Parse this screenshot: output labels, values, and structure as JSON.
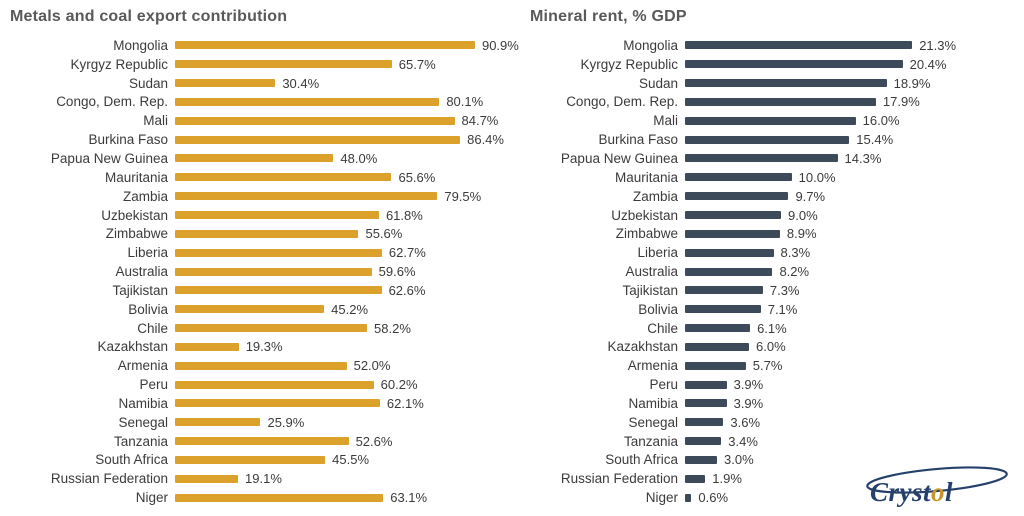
{
  "chart_data": [
    {
      "type": "bar",
      "orientation": "horizontal",
      "title": "Metals and coal export contribution",
      "color": "#DBA12B",
      "xlim": [
        0,
        100
      ],
      "value_suffix": "%",
      "grid": false,
      "legend": "none",
      "categories": [
        "Mongolia",
        "Kyrgyz Republic",
        "Sudan",
        "Congo, Dem. Rep.",
        "Mali",
        "Burkina Faso",
        "Papua New Guinea",
        "Mauritania",
        "Zambia",
        "Uzbekistan",
        "Zimbabwe",
        "Liberia",
        "Australia",
        "Tajikistan",
        "Bolivia",
        "Chile",
        "Kazakhstan",
        "Armenia",
        "Peru",
        "Namibia",
        "Senegal",
        "Tanzania",
        "South Africa",
        "Russian Federation",
        "Niger"
      ],
      "values": [
        90.9,
        65.7,
        30.4,
        80.1,
        84.7,
        86.4,
        48.0,
        65.6,
        79.5,
        61.8,
        55.6,
        62.7,
        59.6,
        62.6,
        45.2,
        58.2,
        19.3,
        52.0,
        60.2,
        62.1,
        25.9,
        52.6,
        45.5,
        19.1,
        63.1
      ]
    },
    {
      "type": "bar",
      "orientation": "horizontal",
      "title": "Mineral rent, % GDP",
      "color": "#3D4A59",
      "xlim": [
        0,
        22.5
      ],
      "value_suffix": "%",
      "grid": false,
      "legend": "none",
      "categories": [
        "Mongolia",
        "Kyrgyz Republic",
        "Sudan",
        "Congo, Dem. Rep.",
        "Mali",
        "Burkina Faso",
        "Papua New Guinea",
        "Mauritania",
        "Zambia",
        "Uzbekistan",
        "Zimbabwe",
        "Liberia",
        "Australia",
        "Tajikistan",
        "Bolivia",
        "Chile",
        "Kazakhstan",
        "Armenia",
        "Peru",
        "Namibia",
        "Senegal",
        "Tanzania",
        "South Africa",
        "Russian Federation",
        "Niger"
      ],
      "values": [
        21.3,
        20.4,
        18.9,
        17.9,
        16.0,
        15.4,
        14.3,
        10.0,
        9.7,
        9.0,
        8.9,
        8.3,
        8.2,
        7.3,
        7.1,
        6.1,
        6.0,
        5.7,
        3.9,
        3.9,
        3.6,
        3.4,
        3.0,
        1.9,
        0.6
      ]
    }
  ],
  "logo": {
    "part1": "Cryst",
    "part2": "o",
    "part3": "l",
    "navy": "#24406B",
    "gold": "#C9962B"
  }
}
